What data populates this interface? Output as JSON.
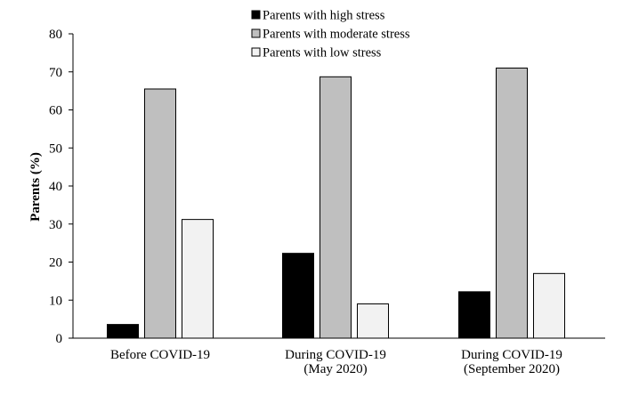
{
  "chart_data": {
    "type": "bar",
    "title": "",
    "xlabel": "",
    "ylabel": "Parents (%)",
    "ylim": [
      0,
      80
    ],
    "yticks": [
      0,
      10,
      20,
      30,
      40,
      50,
      60,
      70,
      80
    ],
    "grid": false,
    "legend_position": "top",
    "categories": [
      [
        "Before COVID-19"
      ],
      [
        "During COVID-19",
        "(May 2020)"
      ],
      [
        "During COVID-19",
        "(September 2020)"
      ]
    ],
    "series": [
      {
        "name": "Parents with high stress",
        "color": "#000000",
        "values": [
          3.6,
          22.3,
          12.2
        ]
      },
      {
        "name": "Parents with moderate stress",
        "color": "#bfbfbf",
        "values": [
          65.5,
          68.7,
          71.0
        ]
      },
      {
        "name": "Parents with low stress",
        "color": "#f2f2f2",
        "values": [
          31.2,
          9.0,
          17.0
        ]
      }
    ]
  }
}
